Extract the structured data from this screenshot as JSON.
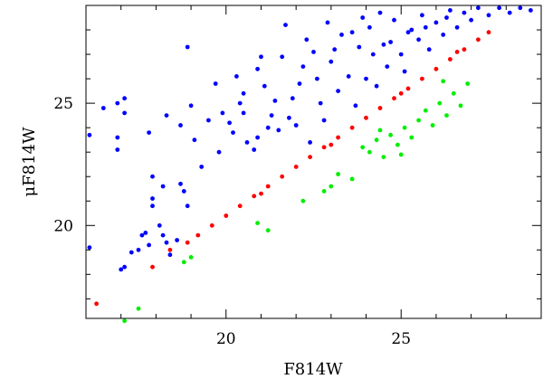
{
  "chart_data": {
    "type": "scatter",
    "title": "",
    "xlabel": "F814W",
    "ylabel": "μF814W",
    "xlim": [
      16.0,
      29.0
    ],
    "ylim": [
      16.2,
      29.0
    ],
    "x_ticks": [
      20,
      25
    ],
    "y_ticks": [
      20,
      25
    ],
    "grid": false,
    "legend": "none",
    "series": [
      {
        "color": "#0000ff",
        "points": [
          [
            16.1,
            23.7
          ],
          [
            16.1,
            19.1
          ],
          [
            16.5,
            24.8
          ],
          [
            16.9,
            25.0
          ],
          [
            16.9,
            23.6
          ],
          [
            16.9,
            23.1
          ],
          [
            17.1,
            25.2
          ],
          [
            17.1,
            24.6
          ],
          [
            17.1,
            18.3
          ],
          [
            17.0,
            18.2
          ],
          [
            17.3,
            18.9
          ],
          [
            17.5,
            19.0
          ],
          [
            17.6,
            19.6
          ],
          [
            17.7,
            19.7
          ],
          [
            17.8,
            19.2
          ],
          [
            17.9,
            21.1
          ],
          [
            17.9,
            20.8
          ],
          [
            18.1,
            20.0
          ],
          [
            18.2,
            19.6
          ],
          [
            18.3,
            19.3
          ],
          [
            18.4,
            18.8
          ],
          [
            18.6,
            19.4
          ],
          [
            18.7,
            21.7
          ],
          [
            18.8,
            21.4
          ],
          [
            18.9,
            20.8
          ],
          [
            18.9,
            27.3
          ],
          [
            18.2,
            21.6
          ],
          [
            17.9,
            22.0
          ],
          [
            17.8,
            23.8
          ],
          [
            18.3,
            24.5
          ],
          [
            18.7,
            24.1
          ],
          [
            19.0,
            24.9
          ],
          [
            19.1,
            23.5
          ],
          [
            19.3,
            22.4
          ],
          [
            19.5,
            24.3
          ],
          [
            19.7,
            25.8
          ],
          [
            19.9,
            24.6
          ],
          [
            20.1,
            24.2
          ],
          [
            20.3,
            26.1
          ],
          [
            20.5,
            25.4
          ],
          [
            20.6,
            23.4
          ],
          [
            20.8,
            23.1
          ],
          [
            20.9,
            26.4
          ],
          [
            21.1,
            25.7
          ],
          [
            21.3,
            24.5
          ],
          [
            21.5,
            23.9
          ],
          [
            21.6,
            26.9
          ],
          [
            21.7,
            28.2
          ],
          [
            21.9,
            25.2
          ],
          [
            22.0,
            24.1
          ],
          [
            22.2,
            26.5
          ],
          [
            22.4,
            23.4
          ],
          [
            22.5,
            27.1
          ],
          [
            22.7,
            25.0
          ],
          [
            22.8,
            24.3
          ],
          [
            23.0,
            26.7
          ],
          [
            23.2,
            25.5
          ],
          [
            23.3,
            27.8
          ],
          [
            23.5,
            26.1
          ],
          [
            23.7,
            24.9
          ],
          [
            23.8,
            27.3
          ],
          [
            24.0,
            26.0
          ],
          [
            24.1,
            28.1
          ],
          [
            24.3,
            25.7
          ],
          [
            24.5,
            27.4
          ],
          [
            24.6,
            26.5
          ],
          [
            24.8,
            28.4
          ],
          [
            25.0,
            27.0
          ],
          [
            25.1,
            26.3
          ],
          [
            25.3,
            28.0
          ],
          [
            25.5,
            27.6
          ],
          [
            25.6,
            28.6
          ],
          [
            25.8,
            27.2
          ],
          [
            26.0,
            28.3
          ],
          [
            26.2,
            27.8
          ],
          [
            26.4,
            28.8
          ],
          [
            26.6,
            28.1
          ],
          [
            26.8,
            28.7
          ],
          [
            27.0,
            28.4
          ],
          [
            27.2,
            28.9
          ],
          [
            27.5,
            28.6
          ],
          [
            27.8,
            28.9
          ],
          [
            28.1,
            28.7
          ],
          [
            28.4,
            28.9
          ],
          [
            28.7,
            28.8
          ],
          [
            20.2,
            23.8
          ],
          [
            20.5,
            24.6
          ],
          [
            20.9,
            23.6
          ],
          [
            21.2,
            24.0
          ],
          [
            21.4,
            25.1
          ],
          [
            21.8,
            24.4
          ],
          [
            22.1,
            25.8
          ],
          [
            22.6,
            26.0
          ],
          [
            23.1,
            27.2
          ],
          [
            23.6,
            27.9
          ],
          [
            24.2,
            27.0
          ],
          [
            24.7,
            27.5
          ],
          [
            25.2,
            27.9
          ],
          [
            25.7,
            28.1
          ],
          [
            26.3,
            28.5
          ],
          [
            21.0,
            26.9
          ],
          [
            20.4,
            25.0
          ],
          [
            19.8,
            23.0
          ],
          [
            22.3,
            27.6
          ],
          [
            23.9,
            28.5
          ],
          [
            24.4,
            28.7
          ],
          [
            22.9,
            28.3
          ]
        ]
      },
      {
        "color": "#ff0000",
        "points": [
          [
            16.3,
            16.8
          ],
          [
            17.9,
            18.3
          ],
          [
            18.4,
            19.0
          ],
          [
            18.9,
            19.3
          ],
          [
            19.2,
            19.6
          ],
          [
            19.6,
            20.0
          ],
          [
            20.0,
            20.4
          ],
          [
            20.4,
            20.8
          ],
          [
            20.8,
            21.2
          ],
          [
            21.2,
            21.6
          ],
          [
            21.6,
            22.0
          ],
          [
            22.0,
            22.4
          ],
          [
            22.4,
            22.8
          ],
          [
            22.8,
            23.2
          ],
          [
            23.2,
            23.6
          ],
          [
            23.6,
            24.0
          ],
          [
            24.0,
            24.4
          ],
          [
            24.4,
            24.8
          ],
          [
            24.8,
            25.2
          ],
          [
            25.2,
            25.6
          ],
          [
            25.6,
            26.0
          ],
          [
            26.0,
            26.4
          ],
          [
            26.4,
            26.8
          ],
          [
            26.8,
            27.2
          ],
          [
            27.2,
            27.6
          ],
          [
            27.5,
            27.9
          ],
          [
            21.0,
            21.3
          ],
          [
            23.0,
            23.3
          ],
          [
            25.0,
            25.4
          ],
          [
            26.6,
            27.1
          ]
        ]
      },
      {
        "color": "#00ee00",
        "points": [
          [
            17.1,
            16.1
          ],
          [
            17.5,
            16.6
          ],
          [
            18.8,
            18.5
          ],
          [
            19.0,
            18.7
          ],
          [
            20.9,
            20.1
          ],
          [
            21.2,
            19.8
          ],
          [
            22.2,
            21.0
          ],
          [
            22.8,
            21.4
          ],
          [
            23.0,
            21.6
          ],
          [
            23.2,
            22.1
          ],
          [
            23.6,
            21.9
          ],
          [
            23.9,
            23.2
          ],
          [
            24.1,
            23.0
          ],
          [
            24.3,
            23.5
          ],
          [
            24.5,
            22.8
          ],
          [
            24.7,
            23.7
          ],
          [
            24.9,
            23.3
          ],
          [
            25.1,
            24.0
          ],
          [
            25.3,
            23.6
          ],
          [
            25.5,
            24.3
          ],
          [
            25.7,
            24.7
          ],
          [
            25.9,
            24.1
          ],
          [
            26.1,
            25.0
          ],
          [
            26.3,
            24.5
          ],
          [
            26.5,
            25.4
          ],
          [
            26.7,
            24.9
          ],
          [
            26.9,
            25.8
          ],
          [
            25.0,
            22.9
          ],
          [
            24.4,
            23.9
          ],
          [
            26.2,
            25.9
          ]
        ]
      }
    ]
  }
}
